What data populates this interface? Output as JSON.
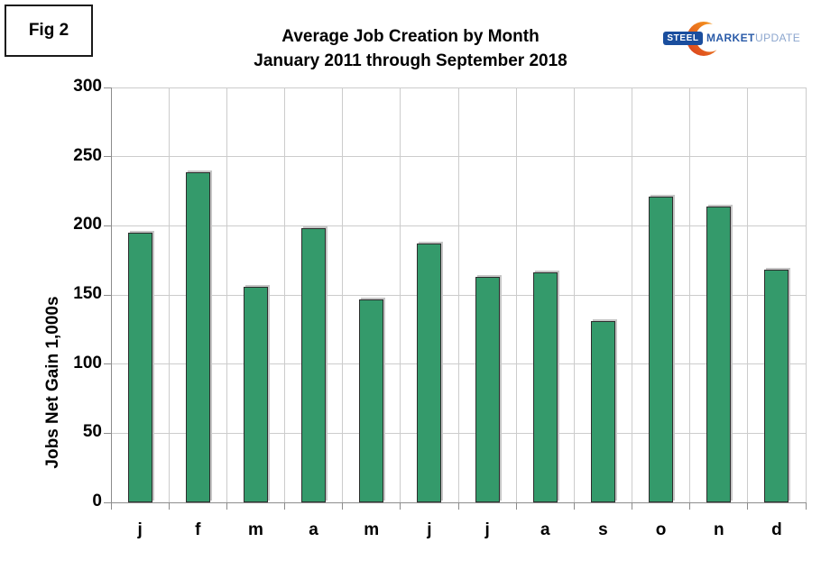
{
  "figure_label": "Fig 2",
  "logo": {
    "steel": "STEEL",
    "market": "MARKET",
    "update": "UPDATE",
    "crescent_icon": "crescent-swoosh-icon"
  },
  "colors": {
    "bar_fill": "#349A6B",
    "bar_border": "#2D2D2D",
    "bar_shadow": "#C6C6C6",
    "gridline": "#CCCCCC",
    "axis": "#8C8C8C",
    "text": "#000000",
    "logo_badge_blue": "#1A4E9E",
    "logo_market_blue": "#2A5BA8",
    "logo_update_blue": "#8CA6CE",
    "logo_orange_dark": "#D93A1E",
    "logo_orange_light": "#F9A51E"
  },
  "chart_data": {
    "type": "bar",
    "title": "Average Job Creation by Month",
    "subtitle": "January 2011 through September 2018",
    "ylabel": "Jobs Net Gain 1,000s",
    "xlabel": "",
    "categories": [
      "j",
      "f",
      "m",
      "a",
      "m",
      "j",
      "j",
      "a",
      "s",
      "o",
      "n",
      "d"
    ],
    "values": [
      195,
      239,
      156,
      198,
      147,
      187,
      163,
      166,
      131,
      221,
      214,
      168
    ],
    "ylim": [
      0,
      300
    ],
    "yticks": [
      0,
      50,
      100,
      150,
      200,
      250,
      300
    ],
    "grid": true,
    "legend": "none"
  }
}
